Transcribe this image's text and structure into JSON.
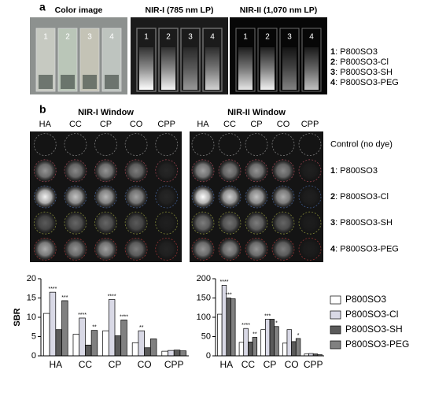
{
  "panel_a": {
    "label": "a",
    "images": [
      {
        "title": "Color image"
      },
      {
        "title": "NIR-I (785 nm LP)"
      },
      {
        "title": "NIR-II (1,070 nm LP)"
      }
    ],
    "tube_numbers": [
      "1",
      "2",
      "3",
      "4"
    ],
    "legend": [
      {
        "number": "1",
        "name": ": P800SO3"
      },
      {
        "number": "2",
        "name": ": P800SO3-Cl"
      },
      {
        "number": "3",
        "name": ": P800SO3-SH"
      },
      {
        "number": "4",
        "name": ": P800SO3-PEG"
      }
    ]
  },
  "panel_b": {
    "label": "b",
    "windows": [
      "NIR-I Window",
      "NIR-II Window"
    ],
    "columns": [
      "HA",
      "CC",
      "CP",
      "CO",
      "CPP"
    ],
    "rows": [
      {
        "name": "Control (no dye)"
      },
      {
        "number": "1",
        "name": ": P800SO3"
      },
      {
        "number": "2",
        "name": ": P800SO3-Cl"
      },
      {
        "number": "3",
        "name": ": P800SO3-SH"
      },
      {
        "number": "4",
        "name": ": P800SO3-PEG"
      }
    ]
  },
  "chart_data": [
    {
      "type": "bar",
      "y_label": "SBR",
      "categories": [
        "HA",
        "CC",
        "CP",
        "CO",
        "CPP"
      ],
      "ylim": [
        0,
        20
      ],
      "yticks": [
        0,
        5,
        10,
        15,
        20
      ],
      "series": [
        {
          "name": "P800SO3",
          "color": "#ffffff",
          "values": [
            11,
            5.6,
            6.5,
            3.4,
            1.2
          ],
          "significance": [
            null,
            null,
            null,
            null,
            null
          ]
        },
        {
          "name": "P800SO3-Cl",
          "color": "#d9d9e6",
          "values": [
            16.5,
            9.8,
            14.6,
            6.5,
            1.4
          ],
          "significance": [
            "****",
            "****",
            "****",
            "**",
            null
          ]
        },
        {
          "name": "P800SO3-SH",
          "color": "#5a5a5a",
          "values": [
            6.8,
            2.8,
            5.2,
            2.1,
            1.5
          ],
          "significance": [
            null,
            null,
            null,
            null,
            null
          ]
        },
        {
          "name": "P800SO3-PEG",
          "color": "#808080",
          "values": [
            14.3,
            6.6,
            9.3,
            4.4,
            1.3
          ],
          "significance": [
            "***",
            "**",
            "****",
            null,
            null
          ]
        }
      ]
    },
    {
      "type": "bar",
      "categories": [
        "HA",
        "CC",
        "CP",
        "CO",
        "CPP"
      ],
      "ylim": [
        0,
        200
      ],
      "yticks": [
        0,
        50,
        100,
        150,
        200
      ],
      "series": [
        {
          "color": "#ffffff",
          "values": [
            108,
            35,
            68,
            33,
            5
          ],
          "significance": [
            null,
            null,
            null,
            null,
            null
          ]
        },
        {
          "color": "#d9d9e6",
          "values": [
            183,
            71,
            95,
            68,
            6
          ],
          "significance": [
            "****",
            "****",
            "***",
            null,
            null
          ]
        },
        {
          "color": "#5a5a5a",
          "values": [
            150,
            36,
            95,
            37,
            5
          ],
          "significance": [
            "***",
            null,
            null,
            null,
            null
          ]
        },
        {
          "color": "#808080",
          "values": [
            148,
            48,
            76,
            45,
            3
          ],
          "significance": [
            null,
            "**",
            "*",
            "*",
            null
          ]
        }
      ]
    }
  ]
}
